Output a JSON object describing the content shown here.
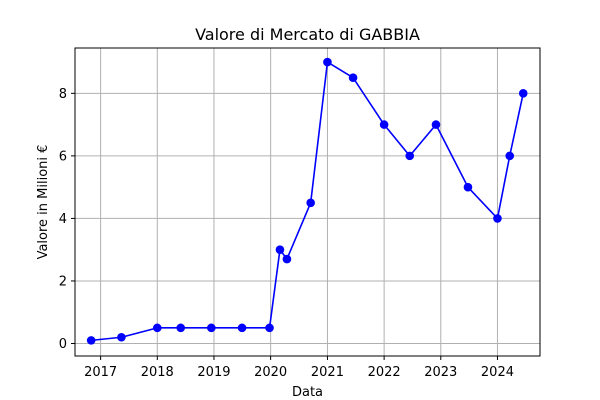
{
  "chart_data": {
    "type": "line",
    "title": "Valore di Mercato di GABBIA",
    "xlabel": "Data",
    "ylabel": "Valore in Milioni €",
    "grid": true,
    "xlim": [
      "2016-07-20",
      "2024-10-01"
    ],
    "ylim": [
      -0.4,
      9.45
    ],
    "x_ticks": [
      "2017",
      "2018",
      "2019",
      "2020",
      "2021",
      "2022",
      "2023",
      "2024"
    ],
    "y_ticks": [
      0,
      2,
      4,
      6,
      8
    ],
    "series": [
      {
        "color": "#0000ff",
        "marker": "circle",
        "x": [
          "2016-11-01",
          "2017-05-15",
          "2018-01-01",
          "2018-06-01",
          "2018-12-15",
          "2019-07-01",
          "2019-12-25",
          "2020-03-01",
          "2020-04-15",
          "2020-09-15",
          "2021-01-01",
          "2021-06-15",
          "2022-01-01",
          "2022-06-15",
          "2022-12-01",
          "2023-06-25",
          "2024-01-01",
          "2024-03-20",
          "2024-06-15"
        ],
        "values": [
          0.1,
          0.2,
          0.5,
          0.5,
          0.5,
          0.5,
          0.5,
          3.0,
          2.7,
          4.5,
          9.0,
          8.5,
          7.0,
          6.0,
          7.0,
          5.0,
          4.0,
          6.0,
          8.0
        ]
      }
    ]
  }
}
